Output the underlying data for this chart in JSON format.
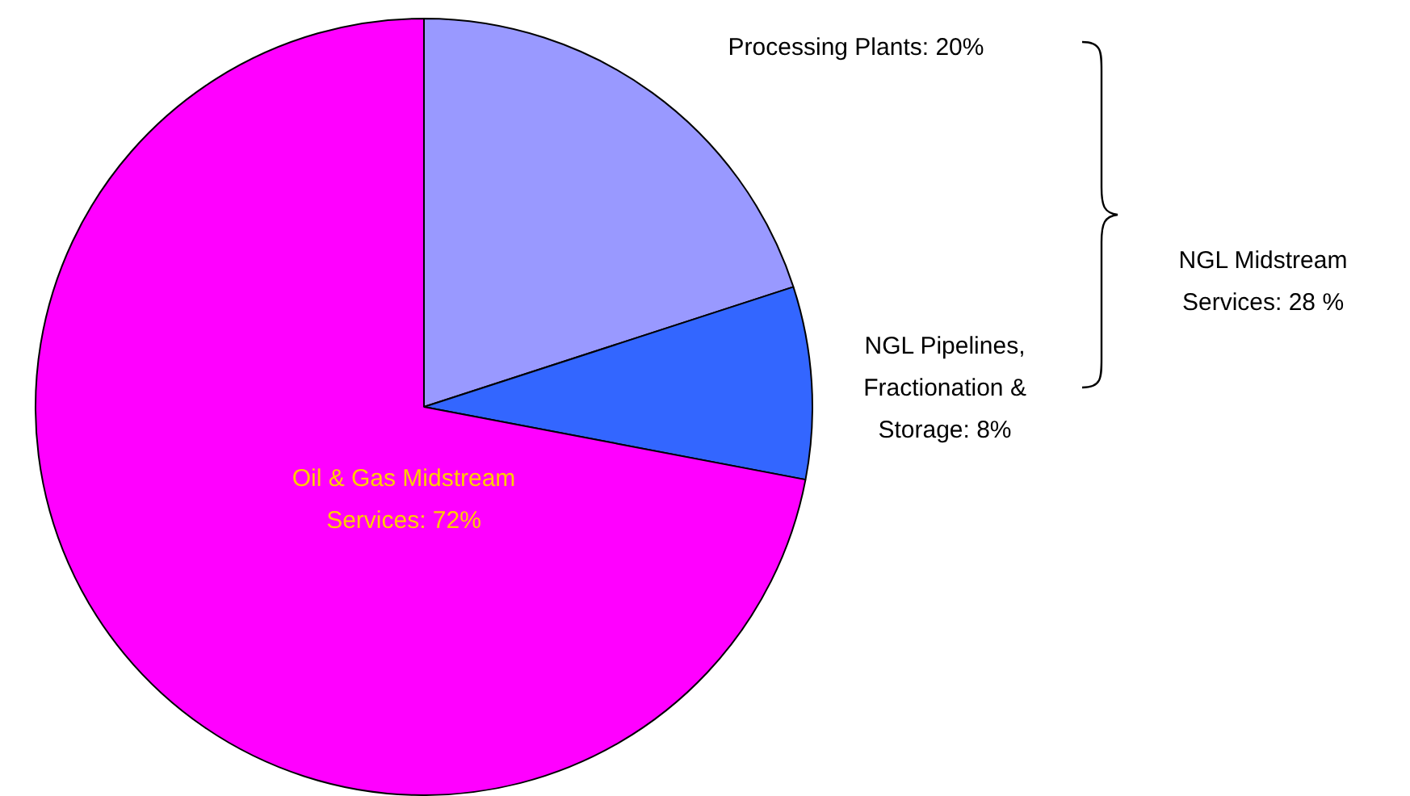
{
  "chart_data": {
    "type": "pie",
    "categories": [
      "Processing Plants",
      "NGL Pipelines, Fractionation & Storage",
      "Oil & Gas Midstream Services"
    ],
    "values": [
      20,
      8,
      72
    ],
    "colors": [
      "#9999ff",
      "#3366ff",
      "#ff00ff"
    ],
    "value_labels": [
      "20%",
      "8%",
      "72%"
    ],
    "annotations": [
      "NGL Midstream Services: 28 %"
    ],
    "legend": false
  }
}
